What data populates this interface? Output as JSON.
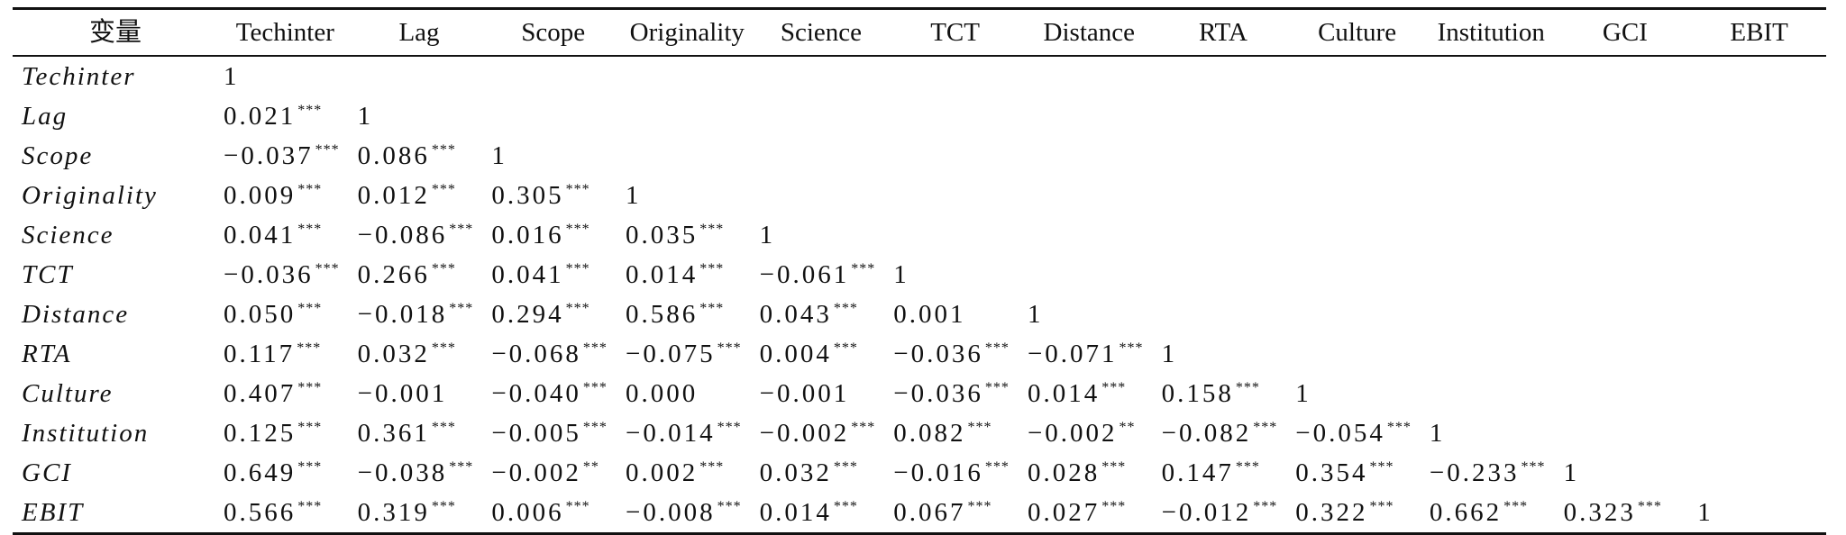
{
  "table": {
    "headers": [
      "变量",
      "Techinter",
      "Lag",
      "Scope",
      "Originality",
      "Science",
      "TCT",
      "Distance",
      "RTA",
      "Culture",
      "Institution",
      "GCI",
      "EBIT"
    ],
    "rows": [
      {
        "label": "Techinter",
        "cells": [
          {
            "v": "1",
            "s": ""
          }
        ]
      },
      {
        "label": "Lag",
        "cells": [
          {
            "v": "0.021",
            "s": "***"
          },
          {
            "v": "1",
            "s": ""
          }
        ]
      },
      {
        "label": "Scope",
        "cells": [
          {
            "v": "−0.037",
            "s": "***"
          },
          {
            "v": "0.086",
            "s": "***"
          },
          {
            "v": "1",
            "s": ""
          }
        ]
      },
      {
        "label": "Originality",
        "cells": [
          {
            "v": "0.009",
            "s": "***"
          },
          {
            "v": "0.012",
            "s": "***"
          },
          {
            "v": "0.305",
            "s": "***"
          },
          {
            "v": "1",
            "s": ""
          }
        ]
      },
      {
        "label": "Science",
        "cells": [
          {
            "v": "0.041",
            "s": "***"
          },
          {
            "v": "−0.086",
            "s": "***"
          },
          {
            "v": "0.016",
            "s": "***"
          },
          {
            "v": "0.035",
            "s": "***"
          },
          {
            "v": "1",
            "s": ""
          }
        ]
      },
      {
        "label": "TCT",
        "cells": [
          {
            "v": "−0.036",
            "s": "***"
          },
          {
            "v": "0.266",
            "s": "***"
          },
          {
            "v": "0.041",
            "s": "***"
          },
          {
            "v": "0.014",
            "s": "***"
          },
          {
            "v": "−0.061",
            "s": "***"
          },
          {
            "v": "1",
            "s": ""
          }
        ]
      },
      {
        "label": "Distance",
        "cells": [
          {
            "v": "0.050",
            "s": "***"
          },
          {
            "v": "−0.018",
            "s": "***"
          },
          {
            "v": "0.294",
            "s": "***"
          },
          {
            "v": "0.586",
            "s": "***"
          },
          {
            "v": "0.043",
            "s": "***"
          },
          {
            "v": "0.001",
            "s": ""
          },
          {
            "v": "1",
            "s": ""
          }
        ]
      },
      {
        "label": "RTA",
        "cells": [
          {
            "v": "0.117",
            "s": "***"
          },
          {
            "v": "0.032",
            "s": "***"
          },
          {
            "v": "−0.068",
            "s": "***"
          },
          {
            "v": "−0.075",
            "s": "***"
          },
          {
            "v": "0.004",
            "s": "***"
          },
          {
            "v": "−0.036",
            "s": "***"
          },
          {
            "v": "−0.071",
            "s": "***"
          },
          {
            "v": "1",
            "s": ""
          }
        ]
      },
      {
        "label": "Culture",
        "cells": [
          {
            "v": "0.407",
            "s": "***"
          },
          {
            "v": "−0.001",
            "s": ""
          },
          {
            "v": "−0.040",
            "s": "***"
          },
          {
            "v": "0.000",
            "s": ""
          },
          {
            "v": "−0.001",
            "s": ""
          },
          {
            "v": "−0.036",
            "s": "***"
          },
          {
            "v": "0.014",
            "s": "***"
          },
          {
            "v": "0.158",
            "s": "***"
          },
          {
            "v": "1",
            "s": ""
          }
        ]
      },
      {
        "label": "Institution",
        "cells": [
          {
            "v": "0.125",
            "s": "***"
          },
          {
            "v": "0.361",
            "s": "***"
          },
          {
            "v": "−0.005",
            "s": "***"
          },
          {
            "v": "−0.014",
            "s": "***"
          },
          {
            "v": "−0.002",
            "s": "***"
          },
          {
            "v": "0.082",
            "s": "***"
          },
          {
            "v": "−0.002",
            "s": "**"
          },
          {
            "v": "−0.082",
            "s": "***"
          },
          {
            "v": "−0.054",
            "s": "***"
          },
          {
            "v": "1",
            "s": ""
          }
        ]
      },
      {
        "label": "GCI",
        "cells": [
          {
            "v": "0.649",
            "s": "***"
          },
          {
            "v": "−0.038",
            "s": "***"
          },
          {
            "v": "−0.002",
            "s": "**"
          },
          {
            "v": "0.002",
            "s": "***"
          },
          {
            "v": "0.032",
            "s": "***"
          },
          {
            "v": "−0.016",
            "s": "***"
          },
          {
            "v": "0.028",
            "s": "***"
          },
          {
            "v": "0.147",
            "s": "***"
          },
          {
            "v": "0.354",
            "s": "***"
          },
          {
            "v": "−0.233",
            "s": "***"
          },
          {
            "v": "1",
            "s": ""
          }
        ]
      },
      {
        "label": "EBIT",
        "cells": [
          {
            "v": "0.566",
            "s": "***"
          },
          {
            "v": "0.319",
            "s": "***"
          },
          {
            "v": "0.006",
            "s": "***"
          },
          {
            "v": "−0.008",
            "s": "***"
          },
          {
            "v": "0.014",
            "s": "***"
          },
          {
            "v": "0.067",
            "s": "***"
          },
          {
            "v": "0.027",
            "s": "***"
          },
          {
            "v": "−0.012",
            "s": "***"
          },
          {
            "v": "0.322",
            "s": "***"
          },
          {
            "v": "0.662",
            "s": "***"
          },
          {
            "v": "0.323",
            "s": "***"
          },
          {
            "v": "1",
            "s": ""
          }
        ]
      }
    ]
  }
}
